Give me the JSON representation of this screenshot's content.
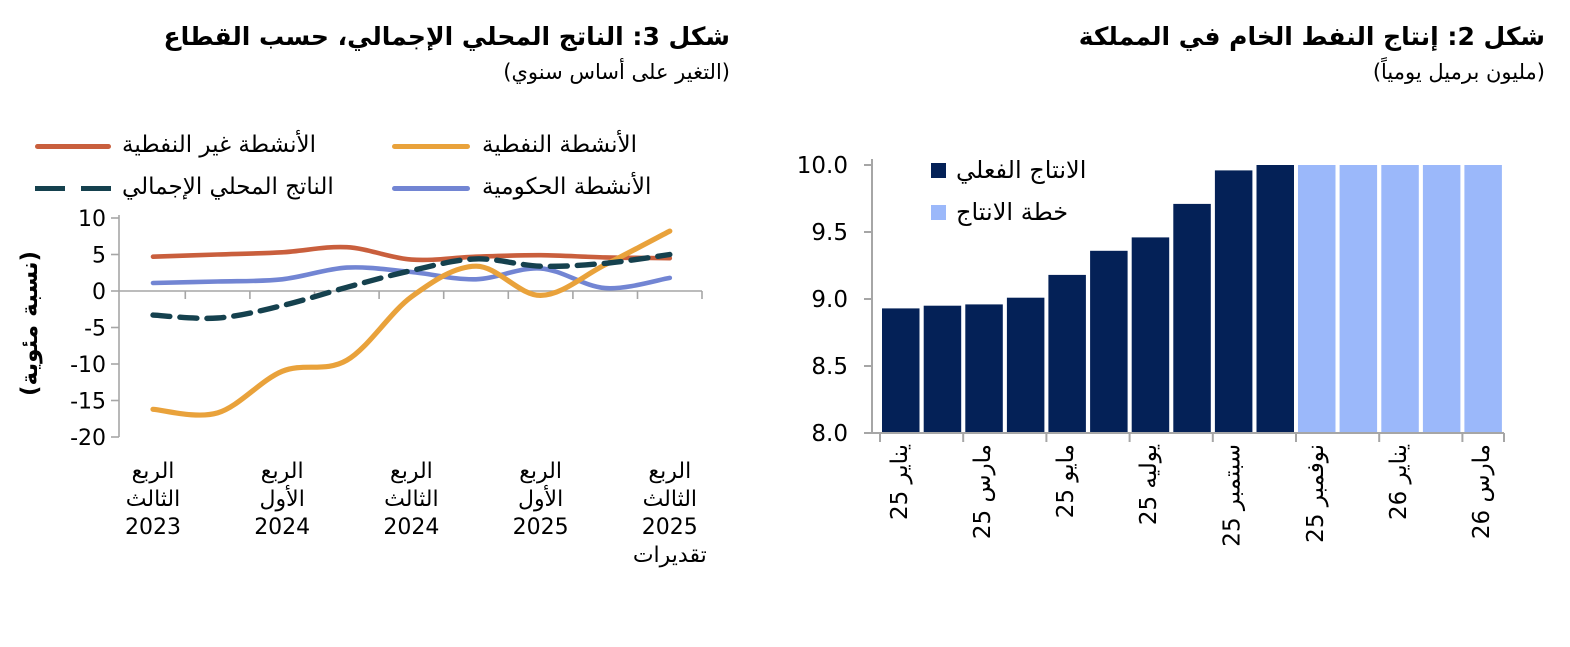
{
  "page": {
    "background": "#FFFFFF",
    "text_color": "#000000"
  },
  "chart_data": [
    {
      "id": "figure-2-crude-oil-production",
      "type": "bar",
      "title": "شكل 2: إنتاج النفط الخام في المملكة",
      "subtitle": "(مليون برميل يومياً)",
      "ylim": [
        8.0,
        10.0
      ],
      "ytick_labels": [
        "10.0",
        "9.5",
        "9.0",
        "8.5",
        "8.0"
      ],
      "xtick_labels": [
        "يناير 25",
        "مارس 25",
        "مايو 25",
        "يوليه 25",
        "سبتمبر 25",
        "نوفمبر 25",
        "يناير 26",
        "مارس 26"
      ],
      "xtick_bar_indexes": [
        0,
        2,
        4,
        6,
        8,
        10,
        12,
        14
      ],
      "bars_total": 15,
      "legend_position": "top-left-inside",
      "axis_color": "#A6A6A6",
      "grid": false,
      "series": [
        {
          "name": "الانتاج الفعلي",
          "color": "#042157",
          "values": [
            8.93,
            8.95,
            8.96,
            9.01,
            9.18,
            9.36,
            9.46,
            9.71,
            9.96,
            10.0
          ]
        },
        {
          "name": "خطة الانتاج",
          "color": "#9BB8FA",
          "values": [
            10.0,
            10.0,
            10.0,
            10.0,
            10.0
          ]
        }
      ]
    },
    {
      "id": "figure-3-gdp-by-sector",
      "type": "line",
      "title": "شكل 3: الناتج المحلي الإجمالي، حسب القطاع",
      "subtitle": "(التغير على أساس سنوي)",
      "ylabel": "(نسبة مئوية)",
      "ylim": [
        -20,
        10
      ],
      "ytick_labels": [
        "10",
        "5",
        "0",
        "-5",
        "-10",
        "-15",
        "-20"
      ],
      "points_per_series": 9,
      "xtick_labels": [
        [
          "الربع",
          "الثالث",
          "2023"
        ],
        [
          "الربع",
          "الأول",
          "2024"
        ],
        [
          "الربع",
          "الثالث",
          "2024"
        ],
        [
          "الربع",
          "الأول",
          "2025"
        ],
        [
          "الربع",
          "الثالث",
          "2025",
          "تقديرات"
        ]
      ],
      "xtick_point_indexes": [
        0,
        2,
        4,
        6,
        8
      ],
      "axis_color": "#A6A6A6",
      "zero_gridline": true,
      "grid": false,
      "legend_position": "top",
      "series": [
        {
          "name": "الأنشطة غير النفطية",
          "color": "#C95F3D",
          "dash": false,
          "values": [
            4.7,
            5.0,
            5.3,
            6.0,
            4.3,
            4.7,
            4.9,
            4.6,
            4.5
          ]
        },
        {
          "name": "الأنشطة النفطية",
          "color": "#E9A23B",
          "dash": false,
          "values": [
            -16.2,
            -16.7,
            -11.0,
            -9.5,
            -0.8,
            3.4,
            -0.6,
            3.6,
            8.2
          ]
        },
        {
          "name": "الناتج المحلي الإجمالي",
          "color": "#15414E",
          "dash": true,
          "values": [
            -3.3,
            -3.7,
            -2.0,
            0.5,
            2.8,
            4.4,
            3.4,
            3.8,
            5.0
          ]
        },
        {
          "name": "الأنشطة الحكومية",
          "color": "#7285D3",
          "dash": false,
          "values": [
            1.1,
            1.3,
            1.6,
            3.2,
            2.6,
            1.6,
            3.1,
            0.4,
            1.8
          ]
        }
      ]
    }
  ]
}
